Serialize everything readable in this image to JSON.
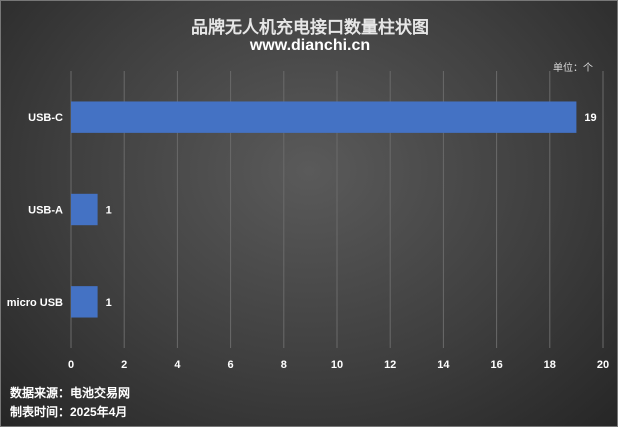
{
  "chart_title": "品牌无人机充电接口数量柱状图",
  "chart_subtitle": "www.dianchi.cn",
  "unit": "单位：个",
  "footer": {
    "source": "数据来源：电池交易网",
    "date": "制表时间：2025年4月"
  },
  "colors": {
    "bar": "#4472c4",
    "grid": "#6a6a6a",
    "text": "#ffffff"
  },
  "chart_data": {
    "type": "bar",
    "orientation": "horizontal",
    "title": "品牌无人机充电接口数量柱状图",
    "subtitle": "www.dianchi.cn",
    "categories": [
      "USB-C",
      "USB-A",
      "micro USB"
    ],
    "values": [
      19,
      1,
      1
    ],
    "value_labels": [
      "19",
      "1",
      "1"
    ],
    "xlim": [
      0,
      20
    ],
    "x_ticks": [
      0,
      2,
      4,
      6,
      8,
      10,
      12,
      14,
      16,
      18,
      20
    ],
    "x_tick_labels": [
      "0",
      "2",
      "4",
      "6",
      "8",
      "10",
      "12",
      "14",
      "16",
      "18",
      "20"
    ],
    "xlabel": "",
    "ylabel": "",
    "grid": "vertical",
    "legend": "none"
  }
}
